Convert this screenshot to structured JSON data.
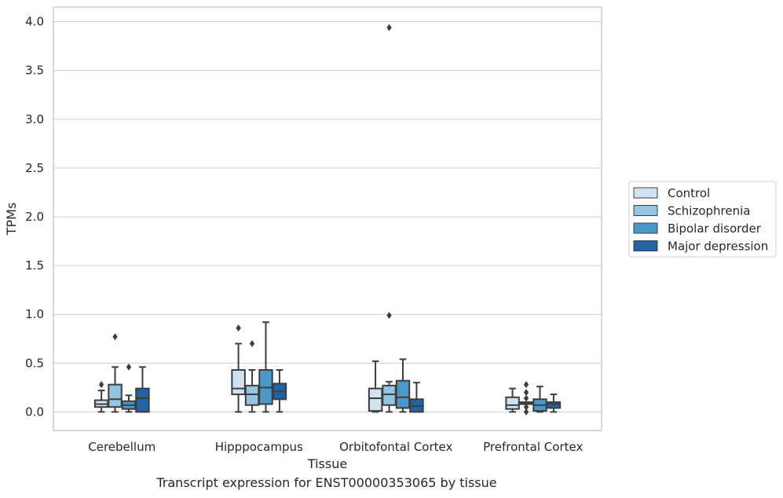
{
  "chart_data": {
    "type": "box",
    "xlabel": "Tissue",
    "ylabel": "TPMs",
    "ylim": [
      -0.19,
      4.15
    ],
    "yticks": [
      "0.0",
      "0.5",
      "1.0",
      "1.5",
      "2.0",
      "2.5",
      "3.0",
      "3.5",
      "4.0"
    ],
    "grid": true,
    "legend_position": "right",
    "categories": [
      "Cerebellum",
      "Hipppocampus",
      "Orbitofontal Cortex",
      "Prefrontal Cortex"
    ],
    "series": [
      {
        "name": "Control",
        "color": "#d0e1f2",
        "boxes": [
          {
            "whislo": 0.0,
            "q1": 0.05,
            "med": 0.08,
            "q3": 0.12,
            "whishi": 0.22,
            "fliers": [
              0.28
            ]
          },
          {
            "whislo": 0.0,
            "q1": 0.18,
            "med": 0.24,
            "q3": 0.43,
            "whishi": 0.7,
            "fliers": [
              0.86
            ]
          },
          {
            "whislo": 0.0,
            "q1": 0.01,
            "med": 0.14,
            "q3": 0.24,
            "whishi": 0.52,
            "fliers": []
          },
          {
            "whislo": 0.0,
            "q1": 0.03,
            "med": 0.07,
            "q3": 0.15,
            "whishi": 0.24,
            "fliers": []
          }
        ]
      },
      {
        "name": "Schizophrenia",
        "color": "#94c4df",
        "boxes": [
          {
            "whislo": 0.0,
            "q1": 0.05,
            "med": 0.13,
            "q3": 0.28,
            "whishi": 0.46,
            "fliers": [
              0.77
            ]
          },
          {
            "whislo": 0.0,
            "q1": 0.07,
            "med": 0.18,
            "q3": 0.27,
            "whishi": 0.43,
            "fliers": [
              0.7
            ]
          },
          {
            "whislo": 0.0,
            "q1": 0.07,
            "med": 0.18,
            "q3": 0.27,
            "whishi": 0.31,
            "fliers": [
              0.99,
              3.94
            ]
          },
          {
            "whislo": 0.08,
            "q1": 0.08,
            "med": 0.09,
            "q3": 0.1,
            "whishi": 0.1,
            "fliers": [
              0.0,
              0.05,
              0.14,
              0.2,
              0.28
            ]
          }
        ]
      },
      {
        "name": "Bipolar disorder",
        "color": "#4a98c9",
        "boxes": [
          {
            "whislo": 0.0,
            "q1": 0.03,
            "med": 0.07,
            "q3": 0.11,
            "whishi": 0.17,
            "fliers": [
              0.46
            ]
          },
          {
            "whislo": 0.0,
            "q1": 0.08,
            "med": 0.25,
            "q3": 0.43,
            "whishi": 0.92,
            "fliers": []
          },
          {
            "whislo": 0.0,
            "q1": 0.04,
            "med": 0.15,
            "q3": 0.32,
            "whishi": 0.54,
            "fliers": []
          },
          {
            "whislo": 0.0,
            "q1": 0.01,
            "med": 0.07,
            "q3": 0.13,
            "whishi": 0.26,
            "fliers": []
          }
        ]
      },
      {
        "name": "Major depression",
        "color": "#2264a5",
        "boxes": [
          {
            "whislo": 0.0,
            "q1": 0.0,
            "med": 0.14,
            "q3": 0.24,
            "whishi": 0.46,
            "fliers": []
          },
          {
            "whislo": 0.0,
            "q1": 0.13,
            "med": 0.21,
            "q3": 0.29,
            "whishi": 0.43,
            "fliers": []
          },
          {
            "whislo": 0.0,
            "q1": 0.0,
            "med": 0.06,
            "q3": 0.13,
            "whishi": 0.3,
            "fliers": []
          },
          {
            "whislo": 0.0,
            "q1": 0.04,
            "med": 0.08,
            "q3": 0.1,
            "whishi": 0.18,
            "fliers": []
          }
        ]
      }
    ]
  },
  "caption": "Transcript expression for ENST00000353065 by tissue"
}
